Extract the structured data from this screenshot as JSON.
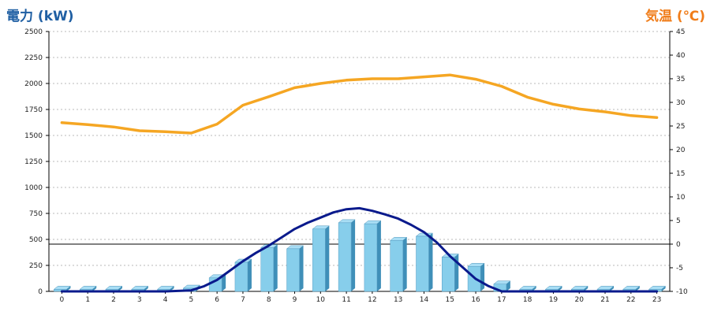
{
  "chart_data": {
    "type": "bar",
    "ylabel_left": "電力 (kW)",
    "ylabel_right": "気温 (℃)",
    "x": [
      "0",
      "1",
      "2",
      "3",
      "4",
      "5",
      "6",
      "7",
      "8",
      "9",
      "10",
      "11",
      "12",
      "13",
      "14",
      "15",
      "16",
      "17",
      "18",
      "19",
      "20",
      "21",
      "22",
      "23"
    ],
    "ylim_left": [
      0,
      2500
    ],
    "yticks_left": [
      "0",
      "250",
      "500",
      "750",
      "1000",
      "1250",
      "1500",
      "1750",
      "2000",
      "2250",
      "2500"
    ],
    "ylim_right": [
      -10,
      45
    ],
    "yticks_right": [
      "-10",
      "-5",
      "0",
      "5",
      "10",
      "15",
      "20",
      "25",
      "30",
      "35",
      "40",
      "45"
    ],
    "grid": true,
    "series": [
      {
        "kind": "bar",
        "axis": "left",
        "color": "#87ceeb",
        "values": [
          20,
          20,
          20,
          20,
          20,
          30,
          130,
          280,
          420,
          410,
          600,
          660,
          650,
          490,
          530,
          330,
          240,
          70,
          20,
          20,
          20,
          20,
          20,
          20
        ]
      },
      {
        "kind": "line",
        "axis": "left",
        "color": "#0a1a8c",
        "x": [
          0,
          1,
          2,
          3,
          4,
          5,
          5.5,
          6,
          6.5,
          7,
          7.5,
          8,
          8.5,
          9,
          9.5,
          10,
          10.5,
          11,
          11.5,
          12,
          12.5,
          13,
          13.5,
          14,
          14.5,
          15,
          15.5,
          16,
          16.5,
          17,
          17.5,
          18,
          19,
          20,
          21,
          22,
          23
        ],
        "values": [
          0,
          0,
          0,
          0,
          0,
          10,
          50,
          110,
          200,
          290,
          370,
          440,
          520,
          600,
          660,
          710,
          760,
          790,
          800,
          775,
          740,
          700,
          640,
          570,
          470,
          340,
          230,
          120,
          50,
          0,
          0,
          0,
          0,
          0,
          0,
          0,
          0
        ]
      },
      {
        "kind": "line",
        "axis": "right",
        "color": "#f5a623",
        "values": [
          25.7,
          25.3,
          24.8,
          24,
          23.8,
          23.5,
          25.4,
          29.4,
          31.2,
          33.1,
          34,
          34.7,
          35,
          35,
          35.4,
          35.8,
          34.9,
          33.4,
          31.1,
          29.6,
          28.6,
          28,
          27.2,
          26.8
        ]
      }
    ]
  }
}
